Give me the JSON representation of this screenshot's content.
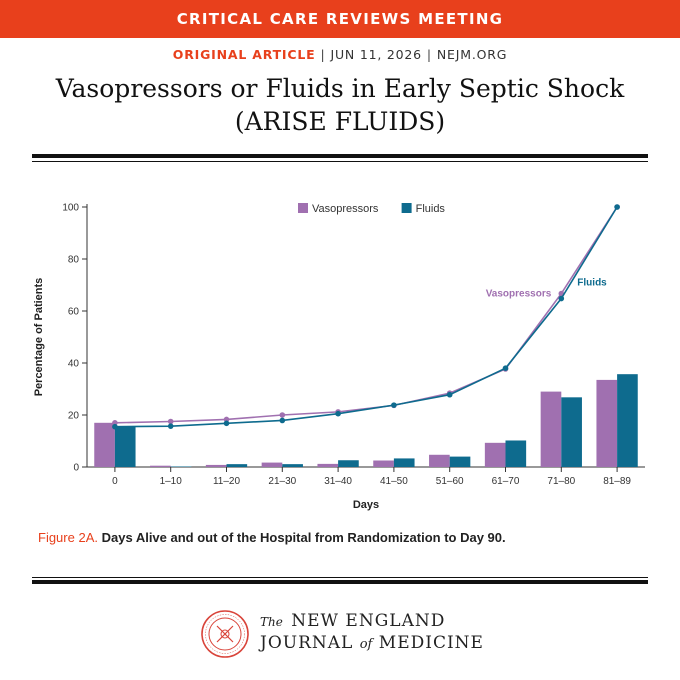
{
  "banner": {
    "text": "CRITICAL CARE REVIEWS MEETING"
  },
  "meta": {
    "article_type": "ORIGINAL ARTICLE",
    "date": "JUN 11, 2026",
    "site": "NEJM.ORG",
    "separator": "|"
  },
  "title": {
    "line1": "Vasopressors or Fluids in Early Septic Shock",
    "line2": "(ARISE FLUIDS)"
  },
  "caption": {
    "label": "Figure 2A.",
    "text": "Days Alive and out of the Hospital from Randomization to Day 90."
  },
  "footer": {
    "journal_the": "The",
    "journal_line1": "NEW ENGLAND",
    "journal_line2_a": "JOURNAL",
    "journal_of": "of",
    "journal_line2_b": "MEDICINE"
  },
  "colors": {
    "banner": "#e8401c",
    "vasopressors": "#a070b0",
    "fluids": "#0e6b8e"
  },
  "chart_data": {
    "type": "bar",
    "categories": [
      "0",
      "1–10",
      "11–20",
      "21–30",
      "31–40",
      "41–50",
      "51–60",
      "61–70",
      "71–80",
      "81–89"
    ],
    "xlabel": "Days",
    "ylabel": "Percentage of Patients",
    "ylim": [
      0,
      100
    ],
    "yticks": [
      0,
      20,
      40,
      60,
      80,
      100
    ],
    "legend_position": "top-center",
    "series": [
      {
        "name": "Vasopressors",
        "kind": "bar",
        "color": "#a070b0",
        "values": [
          17,
          0.5,
          0.8,
          1.7,
          1.2,
          2.5,
          4.7,
          9.3,
          29,
          33.5
        ]
      },
      {
        "name": "Fluids",
        "kind": "bar",
        "color": "#0e6b8e",
        "values": [
          15.5,
          0.2,
          1.1,
          1.1,
          2.6,
          3.3,
          4.0,
          10.2,
          26.8,
          35.7
        ]
      }
    ],
    "cumulative_lines": [
      {
        "name": "Vasopressors",
        "color": "#a070b0",
        "label": "Vasopressors",
        "values": [
          17,
          17.5,
          18.3,
          20,
          21.2,
          23.7,
          28.4,
          37.7,
          66.7,
          100
        ]
      },
      {
        "name": "Fluids",
        "color": "#0e6b8e",
        "label": "Fluids",
        "values": [
          15.5,
          15.7,
          16.8,
          17.9,
          20.5,
          23.8,
          27.8,
          38,
          64.8,
          100
        ]
      }
    ]
  }
}
